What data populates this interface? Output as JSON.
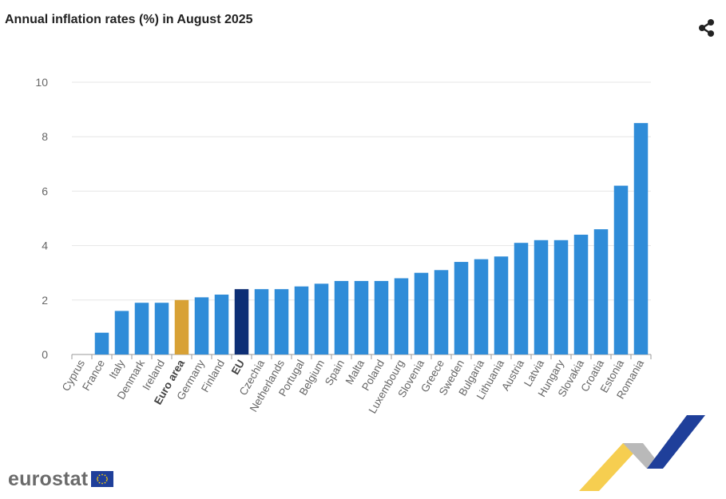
{
  "header": {
    "title": "Annual inflation rates (%) in August 2025"
  },
  "share": {
    "icon": "share-icon"
  },
  "logo": {
    "text": "eurostat",
    "icon": "eu-flag-icon"
  },
  "colors": {
    "bar": "#2F8CD8",
    "euro_area": "#D8A135",
    "eu": "#0D2E75",
    "axis_text": "#666666",
    "grid": "#e6e6e6"
  },
  "chart_data": {
    "type": "bar",
    "title": "Annual inflation rates (%) in August 2025",
    "xlabel": "",
    "ylabel": "",
    "ylim": [
      0,
      10
    ],
    "yticks": [
      0,
      2,
      4,
      6,
      8,
      10
    ],
    "grid": true,
    "categories": [
      "Cyprus",
      "France",
      "Italy",
      "Denmark",
      "Ireland",
      "Euro area",
      "Germany",
      "Finland",
      "EU",
      "Czechia",
      "Netherlands",
      "Portugal",
      "Belgium",
      "Spain",
      "Malta",
      "Poland",
      "Luxembourg",
      "Slovenia",
      "Greece",
      "Sweden",
      "Bulgaria",
      "Lithuania",
      "Austria",
      "Latvia",
      "Hungary",
      "Slovakia",
      "Croatia",
      "Estonia",
      "Romania"
    ],
    "values": [
      0.0,
      0.8,
      1.6,
      1.9,
      1.9,
      2.0,
      2.1,
      2.2,
      2.4,
      2.4,
      2.4,
      2.5,
      2.6,
      2.7,
      2.7,
      2.7,
      2.8,
      3.0,
      3.1,
      3.4,
      3.5,
      3.6,
      4.1,
      4.2,
      4.2,
      4.4,
      4.6,
      6.2,
      8.5
    ],
    "highlight": {
      "Euro area": "euro_area",
      "EU": "eu"
    },
    "bold_labels": [
      "Euro area",
      "EU"
    ]
  }
}
